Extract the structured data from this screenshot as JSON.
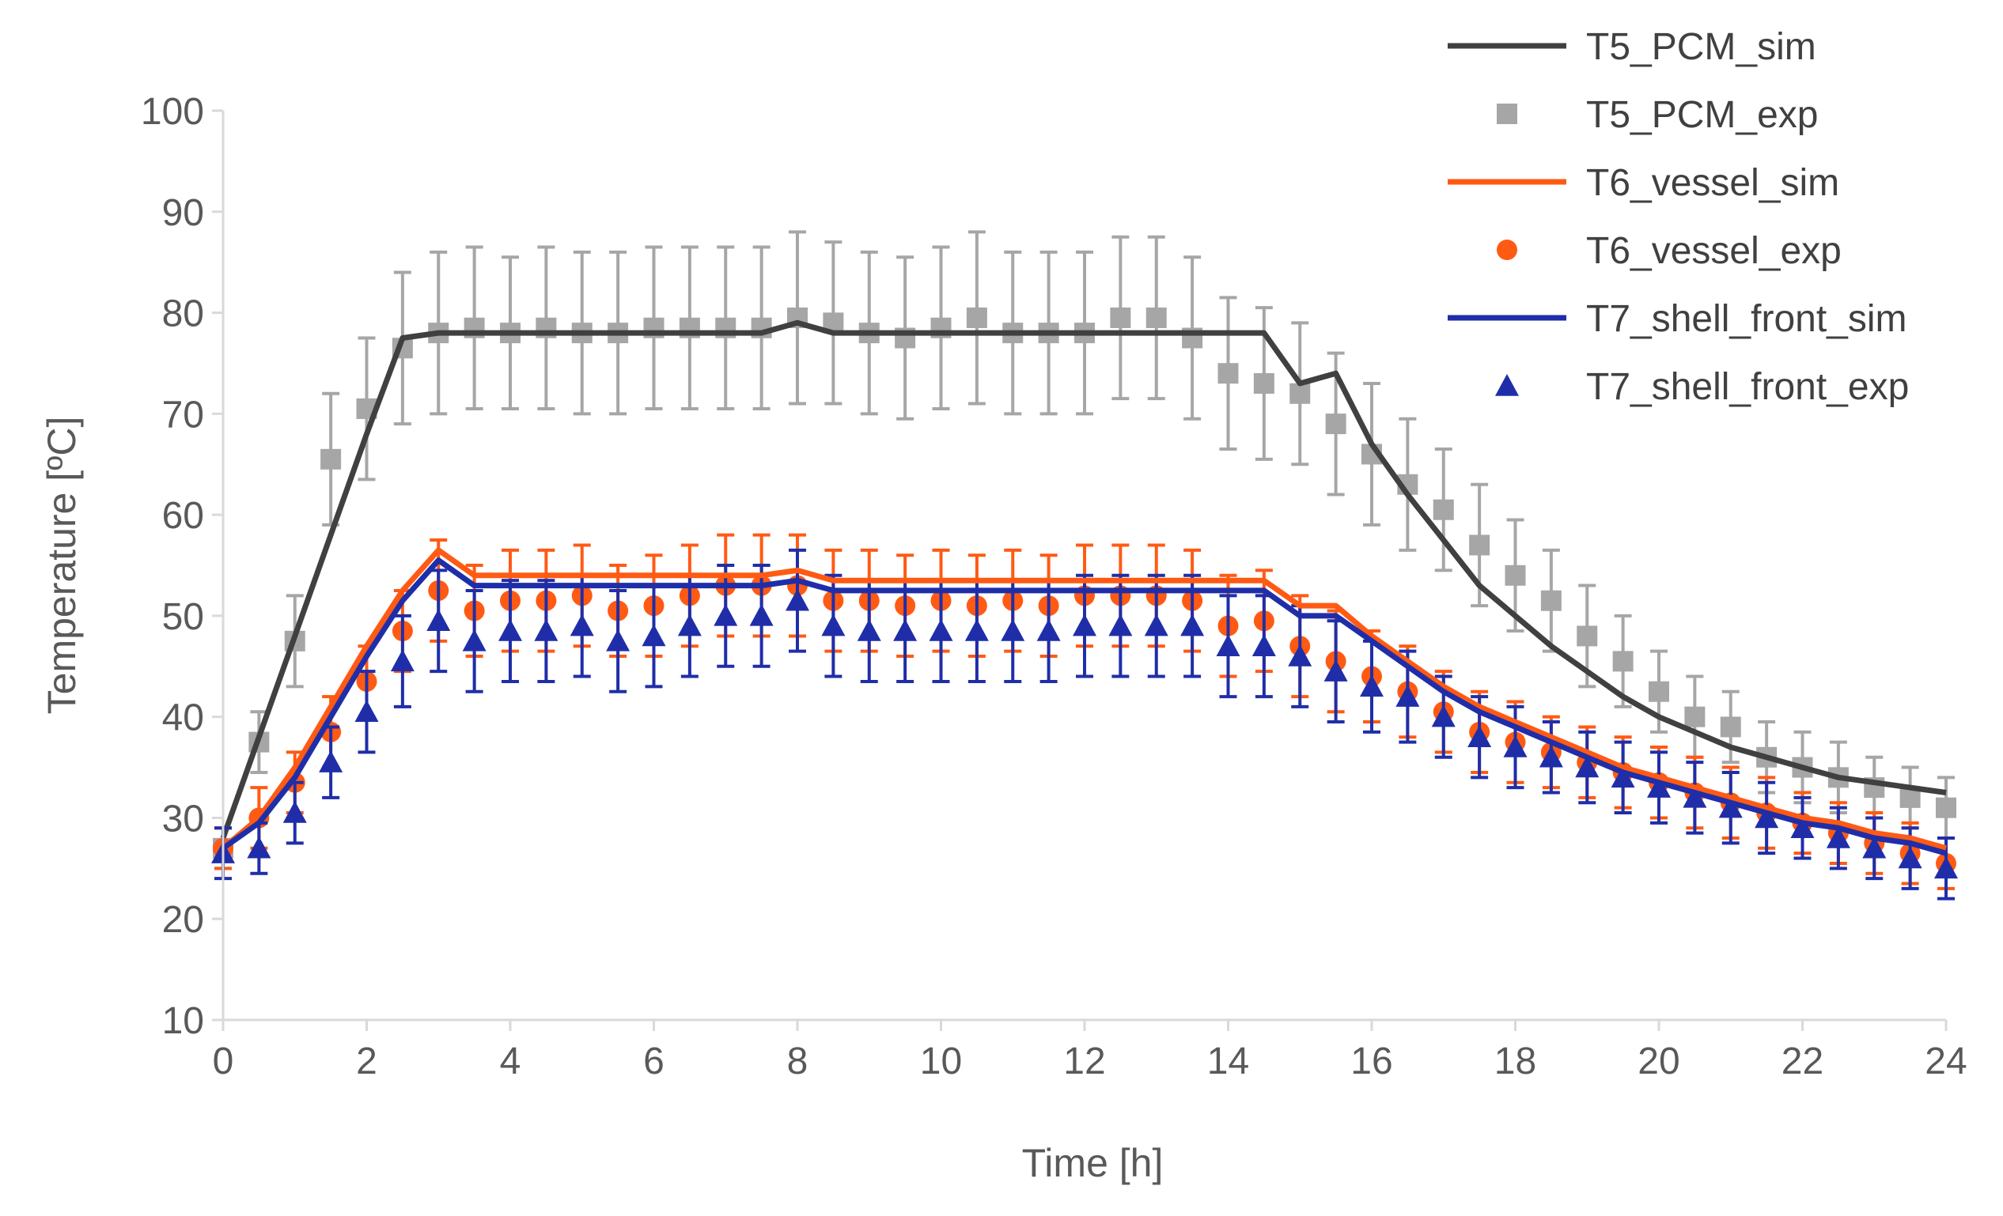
{
  "chart_data": {
    "type": "line",
    "xlabel": "Time [h]",
    "ylabel": "Temperature [ºC]",
    "xlim": [
      0,
      24
    ],
    "ylim": [
      10,
      100
    ],
    "xticks": [
      "0",
      "2",
      "4",
      "6",
      "8",
      "10",
      "12",
      "14",
      "16",
      "18",
      "20",
      "22",
      "24"
    ],
    "yticks": [
      "10",
      "20",
      "30",
      "40",
      "50",
      "60",
      "70",
      "80",
      "90",
      "100"
    ],
    "grid": false,
    "legend_position": "top-right",
    "series": [
      {
        "name": "T5_PCM_sim",
        "kind": "line",
        "color": "#404040",
        "x": [
          0,
          0.5,
          1,
          1.5,
          2,
          2.5,
          3,
          3.5,
          4,
          7.5,
          8,
          8.5,
          14.5,
          15,
          15.5,
          16,
          16.5,
          17,
          17.5,
          18,
          18.5,
          19,
          19.5,
          20,
          20.5,
          21,
          21.5,
          22,
          22.5,
          23,
          23.5,
          24
        ],
        "y": [
          28,
          38,
          48,
          58,
          68,
          77.5,
          78,
          78,
          78,
          78,
          79,
          78,
          78,
          73,
          74,
          67,
          62,
          57.5,
          53,
          50,
          47,
          44.5,
          42,
          40,
          38.5,
          37,
          36,
          35,
          34,
          33.5,
          33,
          32.5
        ]
      },
      {
        "name": "T5_PCM_exp",
        "kind": "points",
        "marker": "square",
        "color": "#a6a6a6",
        "x": [
          0,
          0.5,
          1,
          1.5,
          2,
          2.5,
          3,
          3.5,
          4,
          4.5,
          5,
          5.5,
          6,
          6.5,
          7,
          7.5,
          8,
          8.5,
          9,
          9.5,
          10,
          10.5,
          11,
          11.5,
          12,
          12.5,
          13,
          13.5,
          14,
          14.5,
          15,
          15.5,
          16,
          16.5,
          17,
          17.5,
          18,
          18.5,
          19,
          19.5,
          20,
          20.5,
          21,
          21.5,
          22,
          22.5,
          23,
          23.5,
          24
        ],
        "y": [
          27,
          37.5,
          47.5,
          65.5,
          70.5,
          76.5,
          78,
          78.5,
          78,
          78.5,
          78,
          78,
          78.5,
          78.5,
          78.5,
          78.5,
          79.5,
          79,
          78,
          77.5,
          78.5,
          79.5,
          78,
          78,
          78,
          79.5,
          79.5,
          77.5,
          74,
          73,
          72,
          69,
          66,
          63,
          60.5,
          57,
          54,
          51.5,
          48,
          45.5,
          42.5,
          40,
          39,
          36,
          35,
          34,
          33,
          32,
          31
        ],
        "err": [
          2,
          3,
          4.5,
          6.5,
          7,
          7.5,
          8,
          8,
          7.5,
          8,
          8,
          8,
          8,
          8,
          8,
          8,
          8.5,
          8,
          8,
          8,
          8,
          8.5,
          8,
          8,
          8,
          8,
          8,
          8,
          7.5,
          7.5,
          7,
          7,
          7,
          6.5,
          6,
          6,
          5.5,
          5,
          5,
          4.5,
          4,
          4,
          3.5,
          3.5,
          3.5,
          3.5,
          3,
          3,
          3
        ]
      },
      {
        "name": "T6_vessel_sim",
        "kind": "line",
        "color": "#ff5a14",
        "x": [
          0,
          0.5,
          1,
          1.5,
          2,
          2.5,
          3,
          3.5,
          4,
          7.5,
          8,
          8.5,
          14.5,
          15,
          15.5,
          16,
          16.5,
          17,
          17.5,
          18,
          18.5,
          19,
          19.5,
          20,
          20.5,
          21,
          21.5,
          22,
          22.5,
          23,
          23.5,
          24
        ],
        "y": [
          27,
          30,
          35,
          41,
          47,
          52.5,
          56.5,
          54,
          54,
          54,
          54.5,
          53.5,
          53.5,
          51,
          51,
          48,
          45.5,
          43,
          41,
          39.5,
          38,
          36.5,
          35,
          34,
          33,
          32,
          31,
          30,
          29.5,
          28.5,
          28,
          27
        ]
      },
      {
        "name": "T6_vessel_exp",
        "kind": "points",
        "marker": "circle",
        "color": "#ff5a14",
        "x": [
          0,
          0.5,
          1,
          1.5,
          2,
          2.5,
          3,
          3.5,
          4,
          4.5,
          5,
          5.5,
          6,
          6.5,
          7,
          7.5,
          8,
          8.5,
          9,
          9.5,
          10,
          10.5,
          11,
          11.5,
          12,
          12.5,
          13,
          13.5,
          14,
          14.5,
          15,
          15.5,
          16,
          16.5,
          17,
          17.5,
          18,
          18.5,
          19,
          19.5,
          20,
          20.5,
          21,
          21.5,
          22,
          22.5,
          23,
          23.5,
          24
        ],
        "y": [
          27,
          30,
          33.5,
          38.5,
          43.5,
          48.5,
          52.5,
          50.5,
          51.5,
          51.5,
          52,
          50.5,
          51,
          52,
          53,
          53,
          53,
          51.5,
          51.5,
          51,
          51.5,
          51,
          51.5,
          51,
          52,
          52,
          52,
          51.5,
          49,
          49.5,
          47,
          45.5,
          44,
          42.5,
          40.5,
          38.5,
          37.5,
          36.5,
          35.5,
          34.5,
          33.5,
          32.5,
          31.5,
          30.5,
          29.5,
          28.5,
          27.5,
          26.5,
          25.5
        ],
        "err": [
          2,
          3,
          3,
          3.5,
          3.5,
          4,
          5,
          4.5,
          5,
          5,
          5,
          4.5,
          5,
          5,
          5,
          5,
          5,
          5,
          5,
          5,
          5,
          5,
          5,
          5,
          5,
          5,
          5,
          5,
          5,
          5,
          5,
          5,
          4.5,
          4.5,
          4,
          4,
          4,
          3.5,
          3.5,
          3.5,
          3.5,
          3.5,
          3.5,
          3.5,
          3,
          3,
          3,
          3,
          2.5
        ]
      },
      {
        "name": "T7_shell_front_sim",
        "kind": "line",
        "color": "#1f2ea8",
        "x": [
          0,
          0.5,
          1,
          1.5,
          2,
          2.5,
          3,
          3.5,
          4,
          7.5,
          8,
          8.5,
          14.5,
          15,
          15.5,
          16,
          16.5,
          17,
          17.5,
          18,
          18.5,
          19,
          19.5,
          20,
          20.5,
          21,
          21.5,
          22,
          22.5,
          23,
          23.5,
          24
        ],
        "y": [
          27,
          29.5,
          34,
          40,
          46,
          51.5,
          55.5,
          53,
          53,
          53,
          53.5,
          52.5,
          52.5,
          50,
          50,
          47.5,
          45,
          42.5,
          40.5,
          39,
          37.5,
          36,
          34.5,
          33.5,
          32.5,
          31.5,
          30.5,
          29.5,
          29,
          28,
          27.5,
          26.5
        ]
      },
      {
        "name": "T7_shell_front_exp",
        "kind": "points",
        "marker": "triangle",
        "color": "#1f2ea8",
        "x": [
          0,
          0.5,
          1,
          1.5,
          2,
          2.5,
          3,
          3.5,
          4,
          4.5,
          5,
          5.5,
          6,
          6.5,
          7,
          7.5,
          8,
          8.5,
          9,
          9.5,
          10,
          10.5,
          11,
          11.5,
          12,
          12.5,
          13,
          13.5,
          14,
          14.5,
          15,
          15.5,
          16,
          16.5,
          17,
          17.5,
          18,
          18.5,
          19,
          19.5,
          20,
          20.5,
          21,
          21.5,
          22,
          22.5,
          23,
          23.5,
          24
        ],
        "y": [
          26.5,
          27,
          30.5,
          35.5,
          40.5,
          45.5,
          49.5,
          47.5,
          48.5,
          48.5,
          49,
          47.5,
          48,
          49,
          50,
          50,
          51.5,
          49,
          48.5,
          48.5,
          48.5,
          48.5,
          48.5,
          48.5,
          49,
          49,
          49,
          49,
          47,
          47,
          46,
          44.5,
          43,
          42,
          40,
          38,
          37,
          36,
          35,
          34,
          33,
          32,
          31,
          30,
          29,
          28,
          27,
          26,
          25
        ],
        "err": [
          2.5,
          2.5,
          3,
          3.5,
          4,
          4.5,
          5,
          5,
          5,
          5,
          5,
          5,
          5,
          5,
          5,
          5,
          5,
          5,
          5,
          5,
          5,
          5,
          5,
          5,
          5,
          5,
          5,
          5,
          5,
          5,
          5,
          5,
          4.5,
          4.5,
          4,
          4,
          4,
          3.5,
          3.5,
          3.5,
          3.5,
          3.5,
          3.5,
          3.5,
          3,
          3,
          3,
          3,
          3
        ]
      }
    ]
  }
}
